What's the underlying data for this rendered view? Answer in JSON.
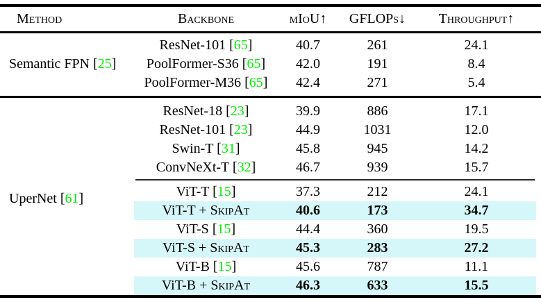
{
  "header": {
    "method": "Method",
    "backbone": "Backbone",
    "miou": "mIoU↑",
    "gflops": "GFLOPs↓",
    "throughput": "Throughput↑"
  },
  "colors": {
    "citation_green": "#00F000",
    "highlight_cyan": "#D6F7FA"
  },
  "sections": [
    {
      "method": "Semantic FPN",
      "method_cite": "25",
      "groups": [
        [
          {
            "backbone": "ResNet-101",
            "cite": "65",
            "miou": "40.7",
            "gflops": "261",
            "throughput": "24.1",
            "highlight": false,
            "bold": false
          },
          {
            "backbone": "PoolFormer-S36",
            "cite": "65",
            "miou": "42.0",
            "gflops": "191",
            "throughput": "8.4",
            "highlight": false,
            "bold": false
          },
          {
            "backbone": "PoolFormer-M36",
            "cite": "65",
            "miou": "42.4",
            "gflops": "271",
            "throughput": "5.4",
            "highlight": false,
            "bold": false
          }
        ]
      ]
    },
    {
      "method": "UperNet",
      "method_cite": "61",
      "groups": [
        [
          {
            "backbone": "ResNet-18",
            "cite": "23",
            "miou": "39.9",
            "gflops": "886",
            "throughput": "17.1",
            "highlight": false,
            "bold": false
          },
          {
            "backbone": "ResNet-101",
            "cite": "23",
            "miou": "44.9",
            "gflops": "1031",
            "throughput": "12.0",
            "highlight": false,
            "bold": false
          },
          {
            "backbone": "Swin-T",
            "cite": "31",
            "miou": "45.8",
            "gflops": "945",
            "throughput": "14.2",
            "highlight": false,
            "bold": false
          },
          {
            "backbone": "ConvNeXt-T",
            "cite": "32",
            "miou": "46.7",
            "gflops": "939",
            "throughput": "15.7",
            "highlight": false,
            "bold": false
          }
        ],
        [
          {
            "backbone": "ViT-T",
            "cite": "15",
            "miou": "37.3",
            "gflops": "212",
            "throughput": "24.1",
            "highlight": false,
            "bold": false
          },
          {
            "backbone": "ViT-T + ",
            "backbone_sc": "SkipAt",
            "miou": "40.6",
            "gflops": "173",
            "throughput": "34.7",
            "highlight": true,
            "bold": true
          },
          {
            "backbone": "ViT-S",
            "cite": "15",
            "miou": "44.4",
            "gflops": "360",
            "throughput": "19.5",
            "highlight": false,
            "bold": false
          },
          {
            "backbone": "ViT-S + ",
            "backbone_sc": "SkipAt",
            "miou": "45.3",
            "gflops": "283",
            "throughput": "27.2",
            "highlight": true,
            "bold": true
          },
          {
            "backbone": "ViT-B",
            "cite": "15",
            "miou": "45.6",
            "gflops": "787",
            "throughput": "11.1",
            "highlight": false,
            "bold": false
          },
          {
            "backbone": "ViT-B + ",
            "backbone_sc": "SkipAt",
            "miou": "46.3",
            "gflops": "633",
            "throughput": "15.5",
            "highlight": true,
            "bold": true
          }
        ]
      ]
    }
  ]
}
